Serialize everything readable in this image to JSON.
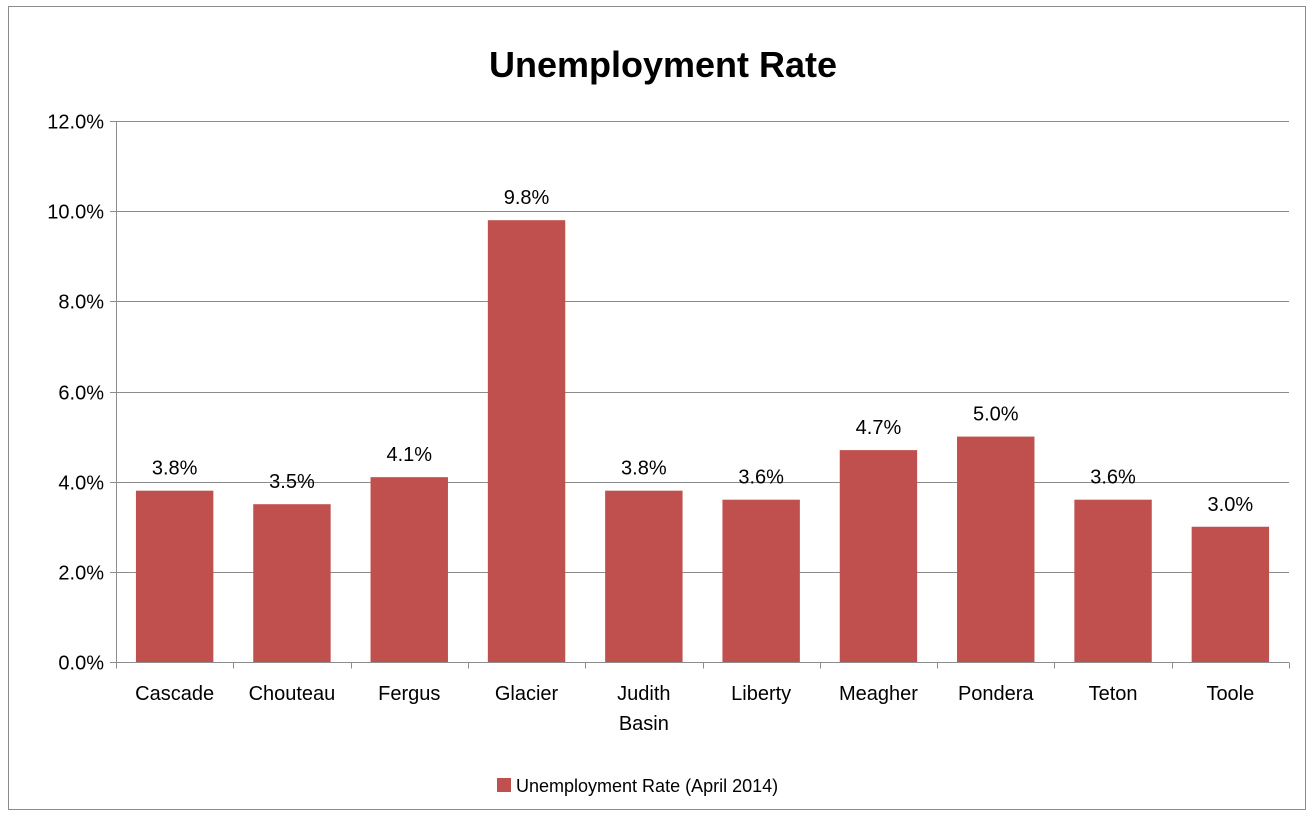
{
  "chart_data": {
    "type": "bar",
    "title": "Unemployment Rate",
    "categories": [
      "Cascade",
      "Chouteau",
      "Fergus",
      "Glacier",
      "Judith Basin",
      "Liberty",
      "Meagher",
      "Pondera",
      "Teton",
      "Toole"
    ],
    "category_label_lines": [
      [
        "Cascade"
      ],
      [
        "Chouteau"
      ],
      [
        "Fergus"
      ],
      [
        "Glacier"
      ],
      [
        "Judith",
        "Basin"
      ],
      [
        "Liberty"
      ],
      [
        "Meagher"
      ],
      [
        "Pondera"
      ],
      [
        "Teton"
      ],
      [
        "Toole"
      ]
    ],
    "series": [
      {
        "name": "Unemployment Rate (April 2014)",
        "values": [
          3.8,
          3.5,
          4.1,
          9.8,
          3.8,
          3.6,
          4.7,
          5.0,
          3.6,
          3.0
        ],
        "data_labels": [
          "3.8%",
          "3.5%",
          "4.1%",
          "9.8%",
          "3.8%",
          "3.6%",
          "4.7%",
          "5.0%",
          "3.6%",
          "3.0%"
        ],
        "color": "#c0504d"
      }
    ],
    "ylim": [
      0,
      12
    ],
    "ytick_values": [
      0,
      2,
      4,
      6,
      8,
      10,
      12
    ],
    "ytick_labels": [
      "0.0%",
      "2.0%",
      "4.0%",
      "6.0%",
      "8.0%",
      "10.0%",
      "12.0%"
    ],
    "xlabel": "",
    "ylabel": "",
    "grid": true,
    "legend_position": "bottom",
    "colors": {
      "bar": "#c0504d",
      "grid": "#8c8c8c",
      "axis": "#8c8c8c"
    }
  }
}
